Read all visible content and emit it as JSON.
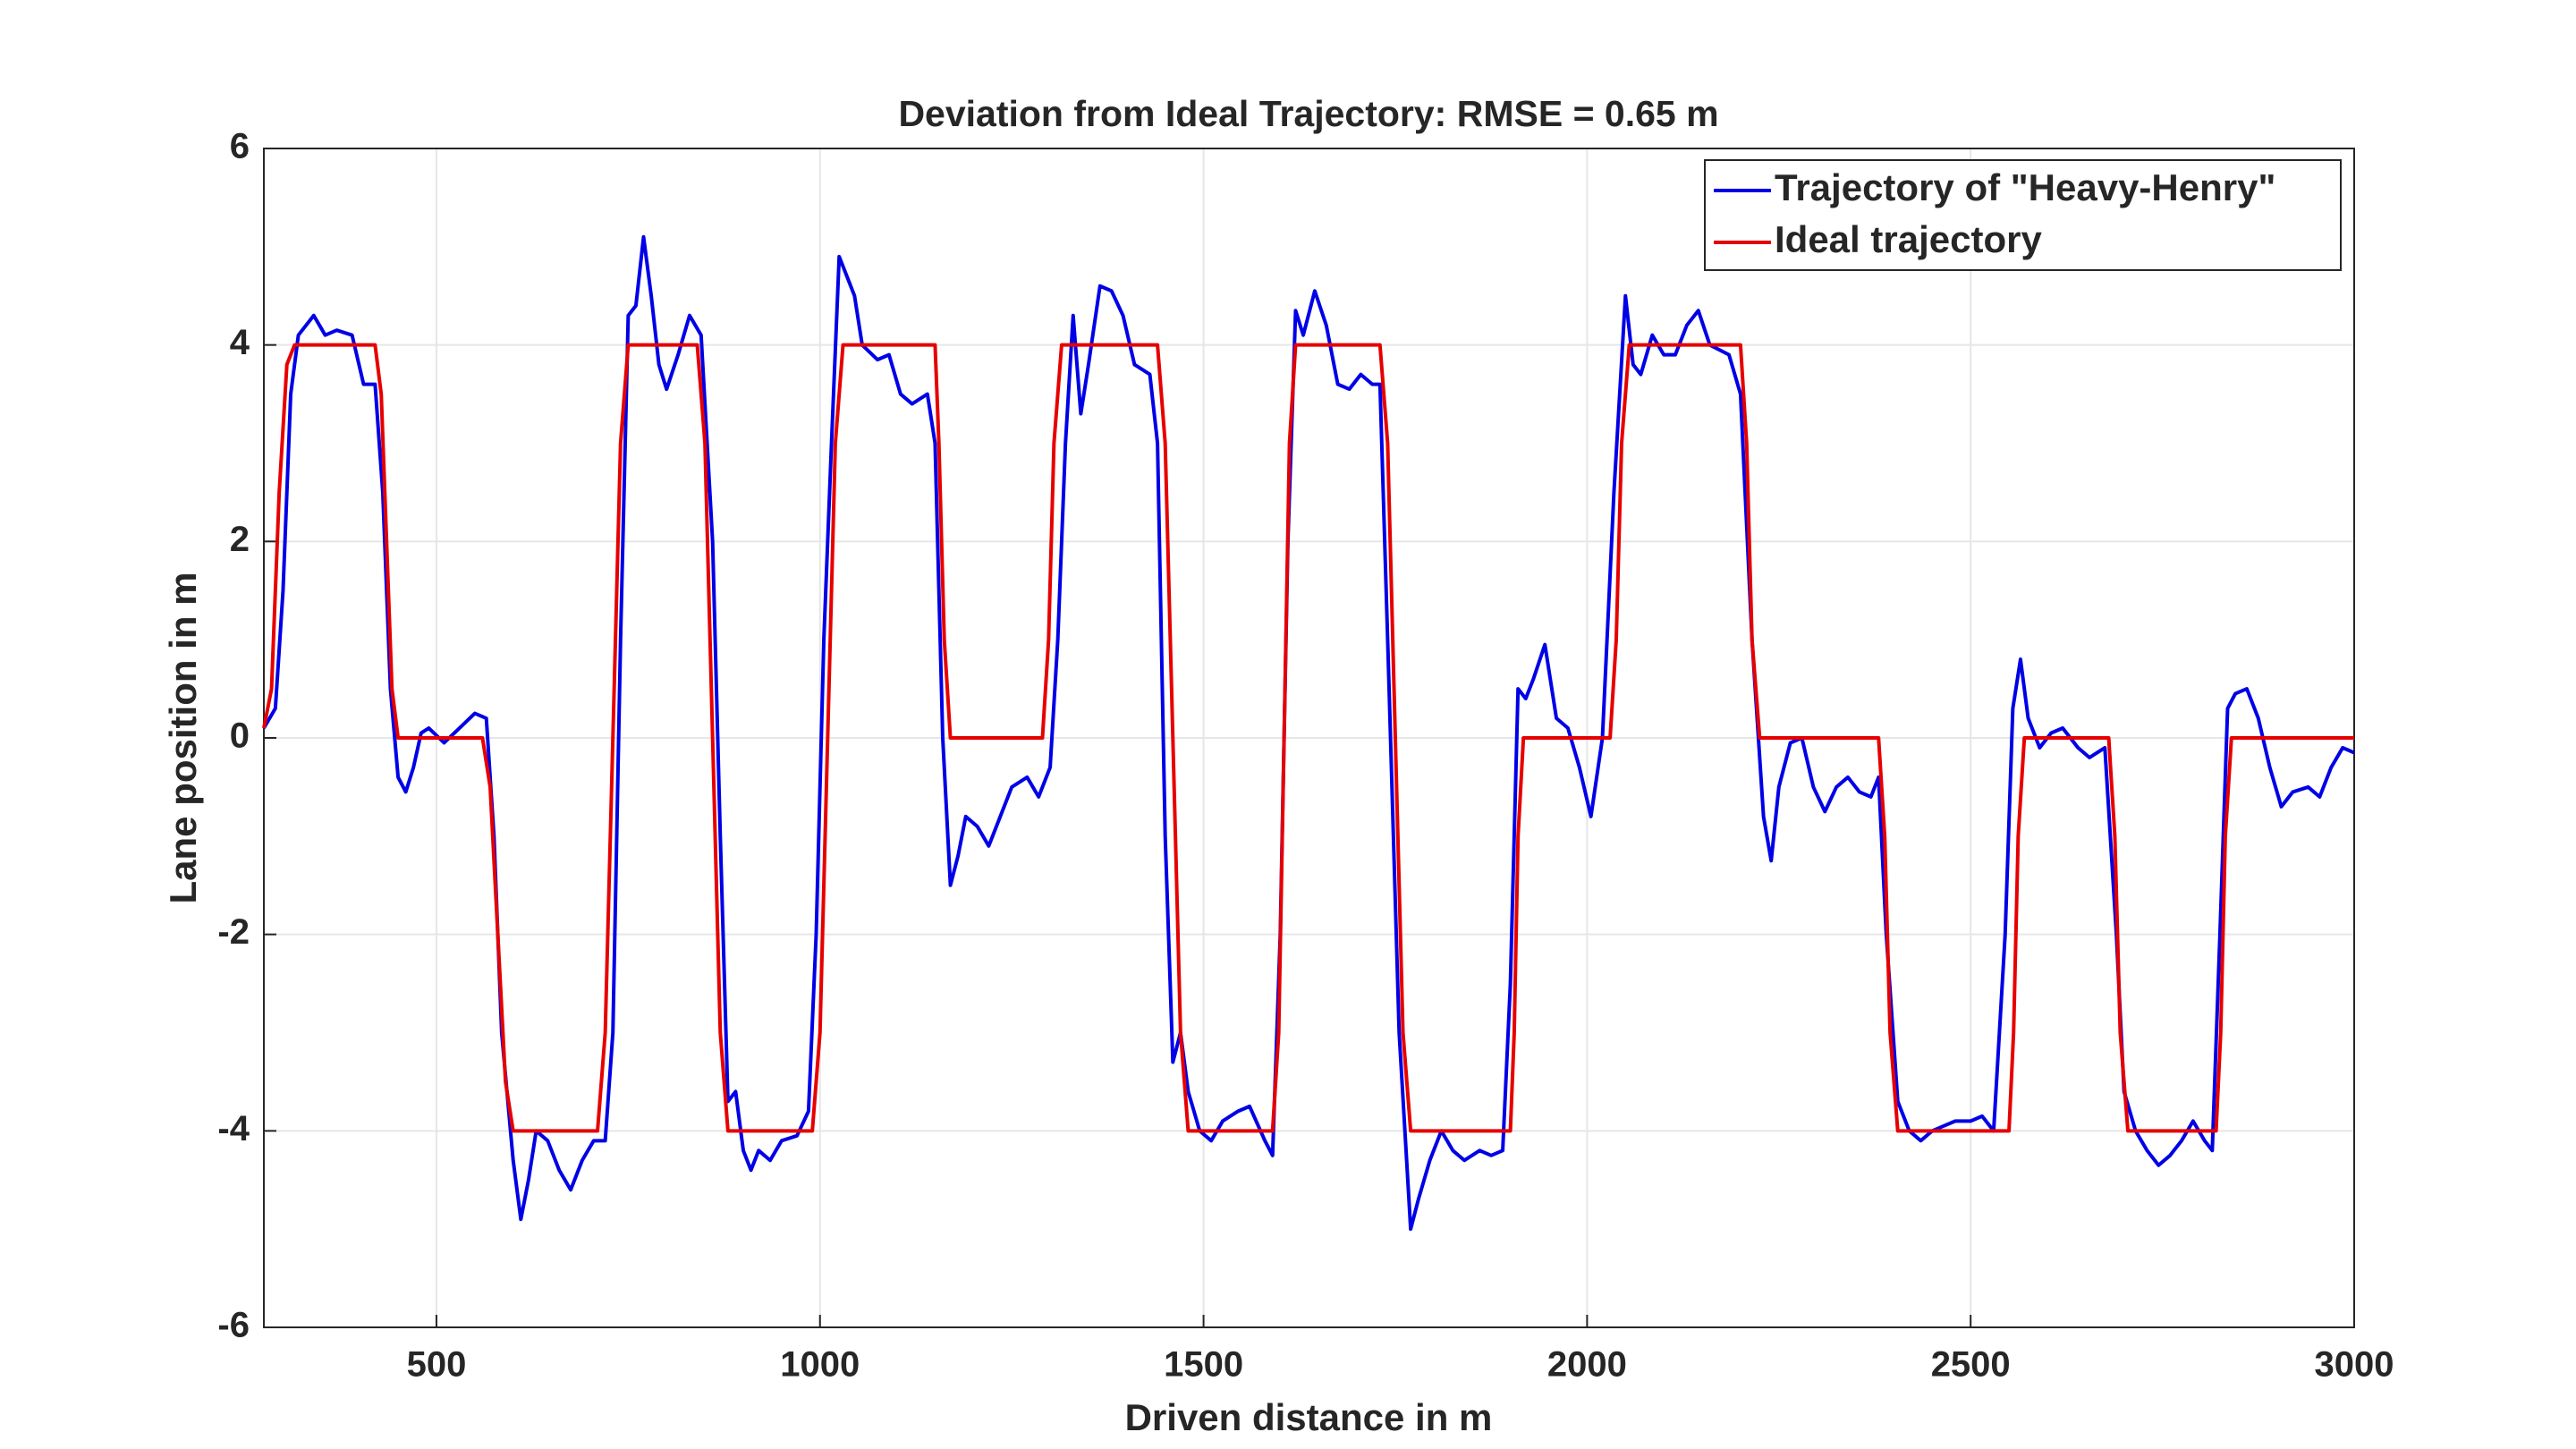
{
  "chart_data": {
    "type": "line",
    "title": "Deviation from Ideal Trajectory: RMSE = 0.65 m",
    "xlabel": "Driven distance in m",
    "ylabel": "Lane position in m",
    "xlim": [
      275,
      3000
    ],
    "ylim": [
      -6,
      6
    ],
    "xticks": [
      500,
      1000,
      1500,
      2000,
      2500,
      3000
    ],
    "yticks": [
      -6,
      -4,
      -2,
      0,
      2,
      4,
      6
    ],
    "grid": true,
    "legend": "upper right",
    "series": [
      {
        "name": "Trajectory of \"Heavy-Henry\"",
        "color": "#0000e6",
        "x": [
          275,
          290,
          300,
          310,
          320,
          340,
          355,
          370,
          390,
          405,
          420,
          430,
          440,
          450,
          460,
          470,
          480,
          490,
          510,
          530,
          550,
          565,
          575,
          585,
          600,
          610,
          620,
          630,
          645,
          660,
          675,
          690,
          705,
          720,
          730,
          740,
          750,
          760,
          770,
          780,
          790,
          800,
          815,
          830,
          845,
          860,
          870,
          880,
          890,
          900,
          910,
          920,
          935,
          950,
          970,
          985,
          995,
          1005,
          1015,
          1025,
          1035,
          1045,
          1055,
          1075,
          1090,
          1105,
          1120,
          1140,
          1150,
          1160,
          1170,
          1180,
          1190,
          1205,
          1220,
          1235,
          1250,
          1270,
          1285,
          1300,
          1310,
          1320,
          1330,
          1340,
          1350,
          1365,
          1380,
          1395,
          1410,
          1430,
          1440,
          1450,
          1460,
          1470,
          1480,
          1495,
          1510,
          1525,
          1545,
          1560,
          1580,
          1590,
          1600,
          1610,
          1620,
          1630,
          1645,
          1660,
          1675,
          1690,
          1705,
          1720,
          1730,
          1740,
          1755,
          1770,
          1780,
          1795,
          1810,
          1825,
          1840,
          1860,
          1875,
          1890,
          1900,
          1910,
          1920,
          1930,
          1945,
          1960,
          1975,
          1990,
          2005,
          2020,
          2035,
          2050,
          2060,
          2070,
          2085,
          2100,
          2115,
          2130,
          2145,
          2160,
          2185,
          2200,
          2215,
          2230,
          2240,
          2250,
          2265,
          2280,
          2295,
          2310,
          2325,
          2340,
          2355,
          2370,
          2380,
          2390,
          2405,
          2420,
          2435,
          2450,
          2465,
          2480,
          2500,
          2515,
          2530,
          2545,
          2555,
          2565,
          2575,
          2590,
          2605,
          2620,
          2640,
          2655,
          2675,
          2690,
          2700,
          2715,
          2730,
          2745,
          2760,
          2775,
          2790,
          2805,
          2815,
          2825,
          2835,
          2845,
          2860,
          2875,
          2890,
          2905,
          2920,
          2940,
          2955,
          2970,
          2985,
          3000
        ],
        "values": [
          0.1,
          0.3,
          1.5,
          3.5,
          4.1,
          4.3,
          4.1,
          4.15,
          4.1,
          3.6,
          3.6,
          2.5,
          0.5,
          -0.4,
          -0.55,
          -0.3,
          0.05,
          0.1,
          -0.05,
          0.1,
          0.25,
          0.2,
          -1,
          -3,
          -4.3,
          -4.9,
          -4.5,
          -4.0,
          -4.1,
          -4.4,
          -4.6,
          -4.3,
          -4.1,
          -4.1,
          -3,
          1,
          4.3,
          4.4,
          5.1,
          4.5,
          3.8,
          3.55,
          3.9,
          4.3,
          4.1,
          2,
          -1,
          -3.7,
          -3.6,
          -4.2,
          -4.4,
          -4.2,
          -4.3,
          -4.1,
          -4.05,
          -3.8,
          -2,
          1,
          3,
          4.9,
          4.7,
          4.5,
          4.0,
          3.85,
          3.9,
          3.5,
          3.4,
          3.5,
          3.0,
          0,
          -1.5,
          -1.2,
          -0.8,
          -0.9,
          -1.1,
          -0.8,
          -0.5,
          -0.4,
          -0.6,
          -0.3,
          1,
          3,
          4.3,
          3.3,
          3.8,
          4.6,
          4.55,
          4.3,
          3.8,
          3.7,
          3.0,
          -1,
          -3.3,
          -3.0,
          -3.6,
          -4.0,
          -4.1,
          -3.9,
          -3.8,
          -3.75,
          -4.1,
          -4.25,
          -2,
          2,
          4.35,
          4.1,
          4.55,
          4.2,
          3.6,
          3.55,
          3.7,
          3.6,
          3.6,
          1,
          -3,
          -5.0,
          -4.7,
          -4.3,
          -4.0,
          -4.2,
          -4.3,
          -4.2,
          -4.25,
          -4.2,
          -2.5,
          0.5,
          0.4,
          0.6,
          0.95,
          0.2,
          0.1,
          -0.3,
          -0.8,
          0,
          2.5,
          4.5,
          3.8,
          3.7,
          4.1,
          3.9,
          3.9,
          4.2,
          4.35,
          4.0,
          3.9,
          3.5,
          1.0,
          -0.8,
          -1.25,
          -0.5,
          -0.05,
          0.0,
          -0.5,
          -0.75,
          -0.5,
          -0.4,
          -0.55,
          -0.6,
          -0.4,
          -2,
          -3.7,
          -4.0,
          -4.1,
          -4.0,
          -3.95,
          -3.9,
          -3.9,
          -3.85,
          -4.0,
          -2,
          0.3,
          0.8,
          0.2,
          -0.1,
          0.05,
          0.1,
          -0.1,
          -0.2,
          -0.1,
          -2,
          -3.6,
          -4.0,
          -4.2,
          -4.35,
          -4.25,
          -4.1,
          -3.9,
          -4.1,
          -4.2,
          -2,
          0.3,
          0.45,
          0.5,
          0.2,
          -0.3,
          -0.7,
          -0.55,
          -0.5,
          -0.6,
          -0.3,
          -0.1,
          -0.15
        ]
      },
      {
        "name": "Ideal trajectory",
        "color": "#e60000",
        "x": [
          275,
          285,
          295,
          305,
          315,
          420,
          428,
          435,
          442,
          450,
          560,
          570,
          580,
          590,
          600,
          710,
          720,
          730,
          740,
          750,
          840,
          850,
          860,
          870,
          880,
          990,
          1000,
          1010,
          1020,
          1030,
          1150,
          1155,
          1162,
          1170,
          1290,
          1298,
          1305,
          1315,
          1440,
          1450,
          1460,
          1470,
          1480,
          1590,
          1598,
          1605,
          1612,
          1620,
          1730,
          1740,
          1750,
          1760,
          1770,
          1900,
          1905,
          1910,
          1917,
          2030,
          2038,
          2045,
          2055,
          2200,
          2208,
          2215,
          2225,
          2380,
          2388,
          2395,
          2405,
          2550,
          2556,
          2562,
          2570,
          2680,
          2688,
          2695,
          2705,
          2820,
          2826,
          2832,
          2840,
          3000
        ],
        "values": [
          0.1,
          0.5,
          2.5,
          3.8,
          4,
          4,
          3.5,
          2,
          0.5,
          0,
          0,
          -0.5,
          -2,
          -3.5,
          -4,
          -4,
          -3,
          0,
          3,
          4,
          4,
          3,
          0,
          -3,
          -4,
          -4,
          -3,
          0,
          3,
          4,
          4,
          3,
          1,
          0,
          0,
          1,
          3,
          4,
          4,
          3,
          0,
          -3,
          -4,
          -4,
          -3,
          0,
          3,
          4,
          4,
          3,
          0,
          -3,
          -4,
          -4,
          -3,
          -1,
          0,
          0,
          1,
          3,
          4,
          4,
          3,
          1,
          0,
          0,
          -1,
          -3,
          -4,
          -4,
          -3,
          -1,
          0,
          0,
          -1,
          -3,
          -4,
          -4,
          -3,
          -1,
          0,
          0
        ]
      }
    ]
  }
}
